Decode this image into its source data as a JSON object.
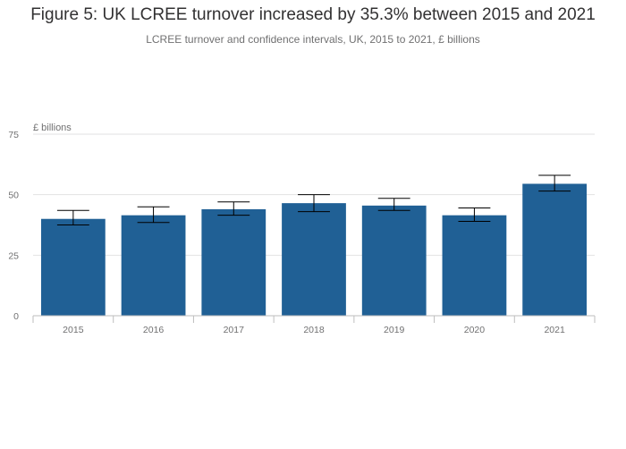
{
  "title": "Figure 5: UK LCREE turnover increased by 35.3% between 2015 and 2021",
  "subtitle": "LCREE turnover and confidence intervals, UK, 2015 to 2021, £ billions",
  "chart_data": {
    "type": "bar",
    "title": "Figure 5: UK LCREE turnover increased by 35.3% between 2015 and 2021",
    "subtitle": "LCREE turnover and confidence intervals, UK, 2015 to 2021, £ billions",
    "ylabel": "£ billions",
    "xlabel": "",
    "categories": [
      "2015",
      "2016",
      "2017",
      "2018",
      "2019",
      "2020",
      "2021"
    ],
    "values": [
      40.0,
      41.5,
      44.0,
      46.5,
      45.5,
      41.5,
      54.5
    ],
    "ci_lower": [
      37.5,
      38.5,
      41.5,
      43.0,
      43.5,
      39.0,
      51.5
    ],
    "ci_upper": [
      43.5,
      45.0,
      47.0,
      50.0,
      48.5,
      44.5,
      58.0
    ],
    "ylim": [
      0,
      75
    ],
    "yticks": [
      0,
      25,
      50,
      75
    ],
    "grid": true,
    "legend": "none",
    "bar_color": "#206095",
    "errorbar_color": "#000000",
    "grid_color": "#e2e2e3"
  }
}
